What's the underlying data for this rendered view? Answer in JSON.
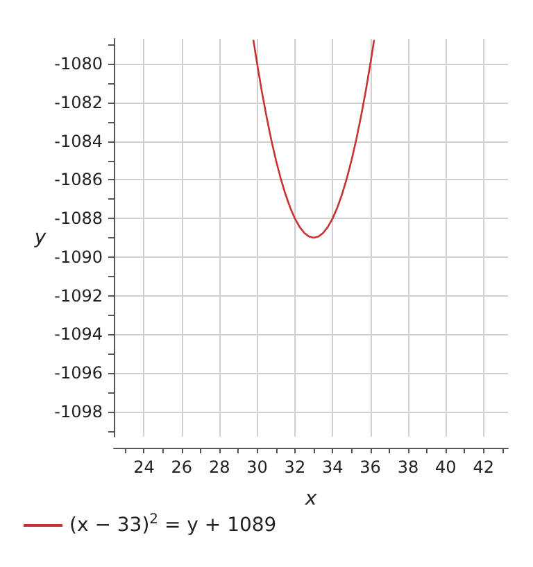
{
  "chart_data": {
    "type": "line",
    "xlabel": "x",
    "ylabel": "y",
    "x": [
      29.8,
      30,
      30.25,
      30.5,
      30.75,
      31,
      31.25,
      31.5,
      31.75,
      32,
      32.25,
      32.5,
      32.75,
      33,
      33.25,
      33.5,
      33.75,
      34,
      34.25,
      34.5,
      34.75,
      35,
      35.25,
      35.5,
      35.75,
      36,
      36.2
    ],
    "series": [
      {
        "name": "(x − 33)$^{2}$ = y + 1089",
        "color": "#c83232",
        "values": [
          -1078.76,
          -1080,
          -1081.44,
          -1082.75,
          -1083.94,
          -1085,
          -1085.94,
          -1086.75,
          -1087.44,
          -1088,
          -1088.44,
          -1088.75,
          -1088.94,
          -1089,
          -1088.94,
          -1088.75,
          -1088.44,
          -1088,
          -1087.44,
          -1086.75,
          -1085.94,
          -1085,
          -1083.94,
          -1082.75,
          -1081.44,
          -1080,
          -1078.76
        ]
      }
    ],
    "xlim": [
      22.4,
      43.3
    ],
    "ylim": [
      -1099.3,
      -1078.7
    ],
    "xticks": [
      {
        "value": 23,
        "label": null
      },
      24,
      {
        "value": 25,
        "label": null
      },
      26,
      {
        "value": 27,
        "label": null
      },
      28,
      {
        "value": 29,
        "label": null
      },
      30,
      {
        "value": 31,
        "label": null
      },
      32,
      {
        "value": 33,
        "label": null
      },
      34,
      {
        "value": 35,
        "label": null
      },
      36,
      {
        "value": 37,
        "label": null
      },
      38,
      {
        "value": 39,
        "label": null
      },
      40,
      {
        "value": 41,
        "label": null
      },
      42,
      {
        "value": 43,
        "label": null
      }
    ],
    "yticks": [
      {
        "value": -1099,
        "label": null
      },
      -1098,
      {
        "value": -1097,
        "label": null
      },
      -1096,
      {
        "value": -1095,
        "label": null
      },
      -1094,
      {
        "value": -1093,
        "label": null
      },
      -1092,
      {
        "value": -1091,
        "label": null
      },
      -1090,
      {
        "value": -1089,
        "label": null
      },
      -1088,
      {
        "value": -1087,
        "label": null
      },
      -1086,
      {
        "value": -1085,
        "label": null
      },
      -1084,
      {
        "value": -1083,
        "label": null
      },
      -1082,
      {
        "value": -1081,
        "label": null
      },
      -1080,
      {
        "value": -1079,
        "label": null
      }
    ],
    "grid": true,
    "legend": "bottom left",
    "marker": "none",
    "line_style": "solid"
  }
}
